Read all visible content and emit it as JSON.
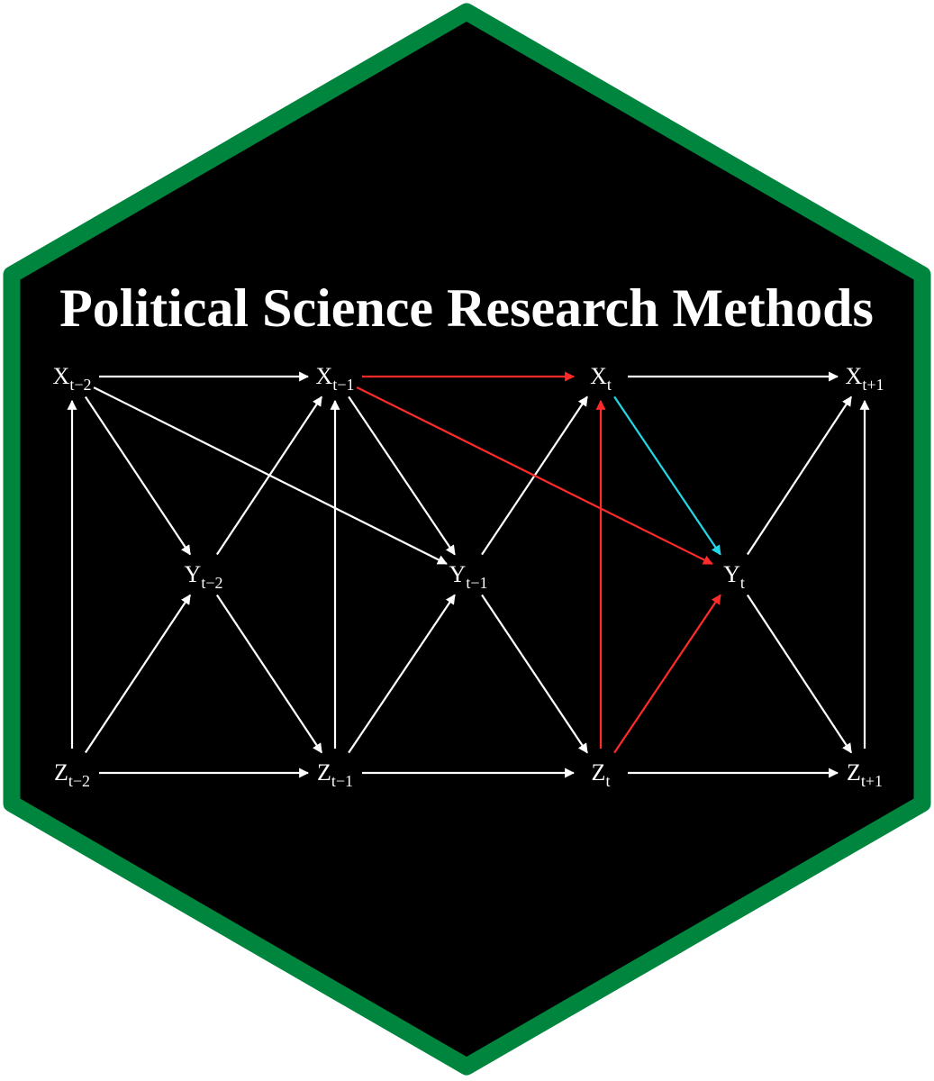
{
  "badge": {
    "title": "Political Science Research Methods",
    "border_color": "#00853f",
    "fill_color": "#000000",
    "text_color": "#ffffff"
  },
  "diagram": {
    "edge_colors": {
      "default": "#ffffff",
      "red": "#ff2a2a",
      "cyan": "#22d8e8"
    },
    "nodes": [
      {
        "id": "Xtm2",
        "base": "X",
        "sub": "t−2"
      },
      {
        "id": "Xtm1",
        "base": "X",
        "sub": "t−1"
      },
      {
        "id": "Xt",
        "base": "X",
        "sub": "t"
      },
      {
        "id": "Xtp1",
        "base": "X",
        "sub": "t+1"
      },
      {
        "id": "Ytm2",
        "base": "Y",
        "sub": "t−2"
      },
      {
        "id": "Ytm1",
        "base": "Y",
        "sub": "t−1"
      },
      {
        "id": "Yt",
        "base": "Y",
        "sub": "t"
      },
      {
        "id": "Ztm2",
        "base": "Z",
        "sub": "t−2"
      },
      {
        "id": "Ztm1",
        "base": "Z",
        "sub": "t−1"
      },
      {
        "id": "Zt",
        "base": "Z",
        "sub": "t"
      },
      {
        "id": "Ztp1",
        "base": "Z",
        "sub": "t+1"
      }
    ],
    "edges": [
      {
        "from": "Xtm2",
        "to": "Xtm1",
        "color": "default"
      },
      {
        "from": "Xtm1",
        "to": "Xt",
        "color": "red"
      },
      {
        "from": "Xt",
        "to": "Xtp1",
        "color": "default"
      },
      {
        "from": "Ztm2",
        "to": "Ztm1",
        "color": "default"
      },
      {
        "from": "Ztm1",
        "to": "Zt",
        "color": "default"
      },
      {
        "from": "Zt",
        "to": "Ztp1",
        "color": "default"
      },
      {
        "from": "Ztm2",
        "to": "Xtm2",
        "color": "default"
      },
      {
        "from": "Ztm1",
        "to": "Xtm1",
        "color": "default"
      },
      {
        "from": "Zt",
        "to": "Xt",
        "color": "red"
      },
      {
        "from": "Ztp1",
        "to": "Xtp1",
        "color": "default"
      },
      {
        "from": "Xtm2",
        "to": "Ytm2",
        "color": "default"
      },
      {
        "from": "Ztm2",
        "to": "Ytm2",
        "color": "default"
      },
      {
        "from": "Ytm2",
        "to": "Xtm1",
        "color": "default"
      },
      {
        "from": "Ytm2",
        "to": "Ztm1",
        "color": "default"
      },
      {
        "from": "Xtm2",
        "to": "Ytm1",
        "color": "default"
      },
      {
        "from": "Xtm1",
        "to": "Ytm1",
        "color": "default"
      },
      {
        "from": "Ztm1",
        "to": "Ytm1",
        "color": "default"
      },
      {
        "from": "Ytm1",
        "to": "Xt",
        "color": "default"
      },
      {
        "from": "Ytm1",
        "to": "Zt",
        "color": "default"
      },
      {
        "from": "Xtm1",
        "to": "Yt",
        "color": "red"
      },
      {
        "from": "Xt",
        "to": "Yt",
        "color": "cyan"
      },
      {
        "from": "Zt",
        "to": "Yt",
        "color": "red"
      },
      {
        "from": "Yt",
        "to": "Xtp1",
        "color": "default"
      },
      {
        "from": "Yt",
        "to": "Ztp1",
        "color": "default"
      }
    ]
  }
}
